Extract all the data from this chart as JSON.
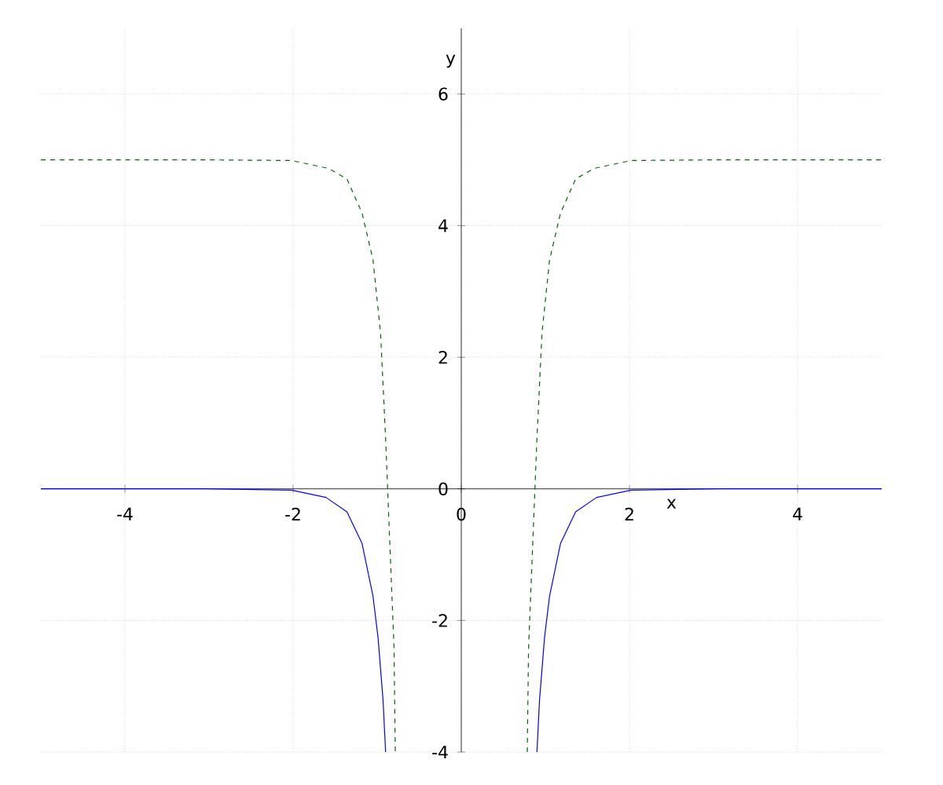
{
  "chart_data": {
    "type": "line",
    "xlabel": "x",
    "ylabel": "y",
    "xlim": [
      -5,
      5
    ],
    "ylim": [
      -4,
      7
    ],
    "xticks": [
      -4,
      -2,
      0,
      2,
      4
    ],
    "yticks": [
      -4,
      -2,
      0,
      2,
      4,
      6
    ],
    "grid": true,
    "marker": "none",
    "series": [
      {
        "color": "#0000ff",
        "line_style": "solid",
        "x": [
          -5,
          -3.05,
          -2.02,
          -1.61,
          -1.36,
          -1.18,
          -1.05,
          -0.99,
          -0.93,
          -0.9,
          0,
          0.9,
          0.93,
          0.99,
          1.05,
          1.18,
          1.36,
          1.61,
          2.02,
          3.05,
          5
        ],
        "values": [
          0,
          0,
          -0.02,
          -0.13,
          -0.35,
          -0.83,
          -1.63,
          -2.26,
          -3.22,
          -4,
          null,
          -4,
          -3.22,
          -2.26,
          -1.63,
          -0.83,
          -0.35,
          -0.13,
          -0.02,
          0,
          0
        ]
      },
      {
        "color": "#006400",
        "line_style": "dashed",
        "x": [
          -5,
          -3.05,
          -2.02,
          -1.58,
          -1.36,
          -1.18,
          -1.05,
          -0.96,
          -0.9,
          -0.85,
          -0.8,
          -0.785,
          0,
          0.785,
          0.8,
          0.85,
          0.9,
          0.96,
          1.05,
          1.18,
          1.36,
          1.58,
          2.02,
          3.05,
          5
        ],
        "values": [
          5,
          5,
          4.99,
          4.87,
          4.71,
          4.19,
          3.48,
          2.37,
          0.77,
          -0.83,
          -2.42,
          -4,
          null,
          -4,
          -2.42,
          -0.83,
          0.77,
          2.37,
          3.48,
          4.19,
          4.71,
          4.87,
          4.99,
          5,
          5
        ]
      }
    ]
  }
}
